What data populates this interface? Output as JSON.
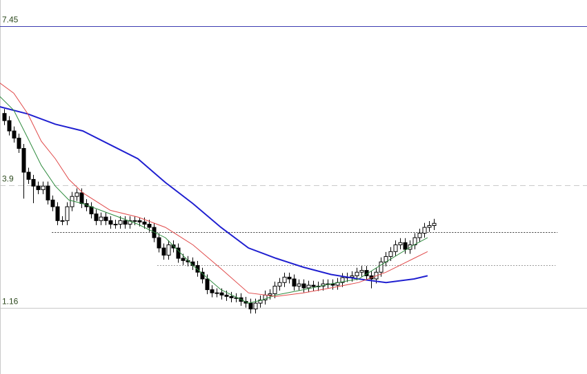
{
  "chart_data": {
    "type": "candlestick",
    "ylim": [
      -0.31,
      8.03
    ],
    "xlim": [
      -0.86,
      120.71
    ],
    "yticks": [
      7.45,
      3.9,
      1.16
    ],
    "ytick_styles": [
      "solid",
      "dashed",
      "solid"
    ],
    "ytick_colors": [
      "#3a3ab0",
      "#c8c8c8",
      "#c8c8c8"
    ],
    "open": [
      5.5,
      5.34,
      5.11,
      4.95,
      4.72,
      4.19,
      4.03,
      3.88,
      3.8,
      3.88,
      3.57,
      3.42,
      3.11,
      3.11,
      3.42,
      3.65,
      3.73,
      3.49,
      3.42,
      3.26,
      3.11,
      3.19,
      3.11,
      3.03,
      3.03,
      3.11,
      3.03,
      3.11,
      3.11,
      3.08,
      3.03,
      2.96,
      2.73,
      2.5,
      2.34,
      2.57,
      2.5,
      2.27,
      2.22,
      2.19,
      2.11,
      1.96,
      1.81,
      1.57,
      1.5,
      1.5,
      1.45,
      1.42,
      1.39,
      1.39,
      1.31,
      1.27,
      1.14,
      1.27,
      1.34,
      1.45,
      1.48,
      1.65,
      1.73,
      1.85,
      1.81,
      1.65,
      1.7,
      1.61,
      1.67,
      1.64,
      1.65,
      1.7,
      1.7,
      1.67,
      1.73,
      1.84,
      1.85,
      1.88,
      1.96,
      2.0,
      1.88,
      1.81,
      1.96,
      2.19,
      2.31,
      2.42,
      2.57,
      2.62,
      2.47,
      2.57,
      2.73,
      2.83,
      2.96,
      3.0
    ],
    "high": [
      5.6,
      5.44,
      5.21,
      5.05,
      4.82,
      4.29,
      4.13,
      3.98,
      3.98,
      3.98,
      3.67,
      3.52,
      3.21,
      3.52,
      3.75,
      3.83,
      3.83,
      3.59,
      3.52,
      3.36,
      3.29,
      3.29,
      3.21,
      3.13,
      3.21,
      3.21,
      3.21,
      3.21,
      3.18,
      3.18,
      3.13,
      3.06,
      2.83,
      2.6,
      2.67,
      2.67,
      2.6,
      2.37,
      2.32,
      2.29,
      2.21,
      2.06,
      1.91,
      1.67,
      1.6,
      1.6,
      1.55,
      1.52,
      1.49,
      1.49,
      1.41,
      1.37,
      1.37,
      1.44,
      1.55,
      1.58,
      1.75,
      1.83,
      1.95,
      1.95,
      1.91,
      1.8,
      1.8,
      1.77,
      1.77,
      1.75,
      1.8,
      1.8,
      1.8,
      1.83,
      1.94,
      1.95,
      1.98,
      2.06,
      2.1,
      2.1,
      1.98,
      2.06,
      2.29,
      2.41,
      2.52,
      2.67,
      2.72,
      2.72,
      2.67,
      2.83,
      2.93,
      3.06,
      3.1,
      3.15
    ],
    "low": [
      5.24,
      5.01,
      4.85,
      4.62,
      3.6,
      3.93,
      3.5,
      3.7,
      3.7,
      3.47,
      3.32,
      3.01,
      3.01,
      3.01,
      3.32,
      3.55,
      3.39,
      3.32,
      3.16,
      3.01,
      3.01,
      3.01,
      2.93,
      2.93,
      2.93,
      2.93,
      2.93,
      3.01,
      2.98,
      2.93,
      2.86,
      2.63,
      2.4,
      2.24,
      2.24,
      2.4,
      2.17,
      2.12,
      2.09,
      2.01,
      1.86,
      1.71,
      1.47,
      1.4,
      1.4,
      1.35,
      1.32,
      1.29,
      1.29,
      1.21,
      1.17,
      1.04,
      1.04,
      1.17,
      1.24,
      1.35,
      1.38,
      1.55,
      1.63,
      1.71,
      1.55,
      1.55,
      1.51,
      1.51,
      1.54,
      1.54,
      1.55,
      1.6,
      1.57,
      1.57,
      1.63,
      1.74,
      1.75,
      1.78,
      1.86,
      1.78,
      1.6,
      1.71,
      1.86,
      2.09,
      2.21,
      2.32,
      2.47,
      2.37,
      2.37,
      2.47,
      2.63,
      2.73,
      2.86,
      2.9
    ],
    "close": [
      5.34,
      5.11,
      4.95,
      4.72,
      4.19,
      4.03,
      3.88,
      3.8,
      3.88,
      3.57,
      3.42,
      3.11,
      3.11,
      3.42,
      3.65,
      3.73,
      3.49,
      3.42,
      3.26,
      3.11,
      3.19,
      3.11,
      3.03,
      3.03,
      3.11,
      3.03,
      3.11,
      3.11,
      3.08,
      3.03,
      2.96,
      2.73,
      2.5,
      2.34,
      2.57,
      2.5,
      2.27,
      2.22,
      2.19,
      2.11,
      1.96,
      1.81,
      1.57,
      1.5,
      1.5,
      1.45,
      1.42,
      1.39,
      1.39,
      1.31,
      1.27,
      1.14,
      1.27,
      1.34,
      1.45,
      1.48,
      1.65,
      1.73,
      1.85,
      1.81,
      1.65,
      1.7,
      1.61,
      1.67,
      1.64,
      1.65,
      1.7,
      1.7,
      1.67,
      1.73,
      1.84,
      1.85,
      1.88,
      1.96,
      2.0,
      1.88,
      1.81,
      1.96,
      2.19,
      2.31,
      2.42,
      2.57,
      2.62,
      2.47,
      2.57,
      2.73,
      2.83,
      2.96,
      3.0,
      3.05
    ],
    "lines": [
      {
        "color": "#1f1fd0",
        "width": 2,
        "x": [
          -0.9,
          4.9,
          10.6,
          16.3,
          22,
          27.7,
          33.4,
          39.1,
          44.9,
          50.6,
          56.3,
          62,
          67.7,
          73.4,
          79.1,
          84.9,
          87.7
        ],
        "values": [
          5.65,
          5.49,
          5.26,
          5.11,
          4.8,
          4.49,
          3.96,
          3.49,
          2.96,
          2.5,
          2.27,
          2.07,
          1.91,
          1.81,
          1.73,
          1.81,
          1.88
        ]
      },
      {
        "color": "#2e8b3e",
        "width": 1,
        "x": [
          -0.9,
          2,
          4.9,
          7.7,
          10.6,
          13.4,
          16.3,
          22,
          27.7,
          33.4,
          39.1,
          44.9,
          50.6,
          53.4,
          56.3,
          62,
          67.7,
          73.4,
          79.1,
          84.9,
          87.7
        ],
        "values": [
          5.88,
          5.57,
          4.95,
          4.34,
          3.88,
          3.57,
          3.49,
          3.26,
          3.03,
          2.73,
          2.11,
          1.57,
          1.27,
          1.34,
          1.45,
          1.57,
          1.7,
          1.81,
          2.19,
          2.57,
          2.73
        ]
      },
      {
        "color": "#e04848",
        "width": 1,
        "x": [
          -0.9,
          2,
          4.9,
          7.7,
          10.6,
          13.4,
          16.3,
          22,
          27.7,
          33.4,
          39.1,
          44.9,
          50.6,
          56.3,
          62,
          67.7,
          73.4,
          79.1,
          84.9,
          87.7
        ],
        "values": [
          6.18,
          5.95,
          5.49,
          4.88,
          4.49,
          4.03,
          3.73,
          3.34,
          3.19,
          2.96,
          2.57,
          2.04,
          1.5,
          1.42,
          1.5,
          1.61,
          1.73,
          1.96,
          2.27,
          2.42
        ]
      }
    ],
    "dotted_levels": [
      {
        "value": 2.85,
        "from": 9.9,
        "to": 114.6,
        "color": "#333333"
      },
      {
        "value": 2.11,
        "from": 31.7,
        "to": 114.2,
        "color": "#999999"
      }
    ]
  }
}
